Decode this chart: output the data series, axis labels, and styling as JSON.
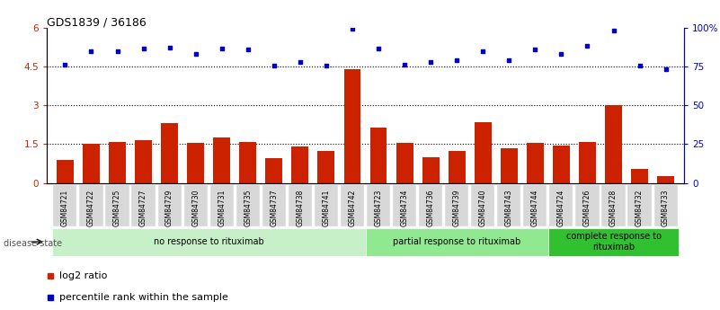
{
  "title": "GDS1839 / 36186",
  "samples": [
    "GSM84721",
    "GSM84722",
    "GSM84725",
    "GSM84727",
    "GSM84729",
    "GSM84730",
    "GSM84731",
    "GSM84735",
    "GSM84737",
    "GSM84738",
    "GSM84741",
    "GSM84742",
    "GSM84723",
    "GSM84734",
    "GSM84736",
    "GSM84739",
    "GSM84740",
    "GSM84743",
    "GSM84744",
    "GSM84724",
    "GSM84726",
    "GSM84728",
    "GSM84732",
    "GSM84733"
  ],
  "log2_ratio": [
    0.9,
    1.5,
    1.6,
    1.65,
    2.3,
    1.55,
    1.75,
    1.6,
    0.95,
    1.4,
    1.25,
    4.4,
    2.15,
    1.55,
    1.0,
    1.25,
    2.35,
    1.35,
    1.55,
    1.45,
    1.6,
    3.0,
    0.55,
    0.25
  ],
  "percentile": [
    76.5,
    85.0,
    85.0,
    86.5,
    87.5,
    83.5,
    86.5,
    86.0,
    75.8,
    78.2,
    75.8,
    99.2,
    86.5,
    76.5,
    78.2,
    79.2,
    85.0,
    79.2,
    86.0,
    83.5,
    88.3,
    98.3,
    75.8,
    73.3
  ],
  "groups": [
    {
      "label": "no response to rituximab",
      "start": 0,
      "end": 12,
      "color": "#c8f0c8"
    },
    {
      "label": "partial response to rituximab",
      "start": 12,
      "end": 19,
      "color": "#90e890"
    },
    {
      "label": "complete response to\nrituximab",
      "start": 19,
      "end": 24,
      "color": "#30c030"
    }
  ],
  "bar_color": "#cc2200",
  "dot_color": "#0000cc",
  "ylim_left": [
    0,
    6
  ],
  "ylim_right": [
    0,
    100
  ],
  "yticks_left": [
    0,
    1.5,
    3.0,
    4.5,
    6.0
  ],
  "ytick_labels_left": [
    "0",
    "1.5",
    "3",
    "4.5",
    "6"
  ],
  "yticks_right": [
    0,
    25,
    50,
    75,
    100
  ],
  "ytick_labels_right": [
    "0",
    "25",
    "50",
    "75",
    "100%"
  ],
  "hlines": [
    1.5,
    3.0,
    4.5
  ],
  "legend_items": [
    "log2 ratio",
    "percentile rank within the sample"
  ],
  "disease_state_label": "disease state"
}
